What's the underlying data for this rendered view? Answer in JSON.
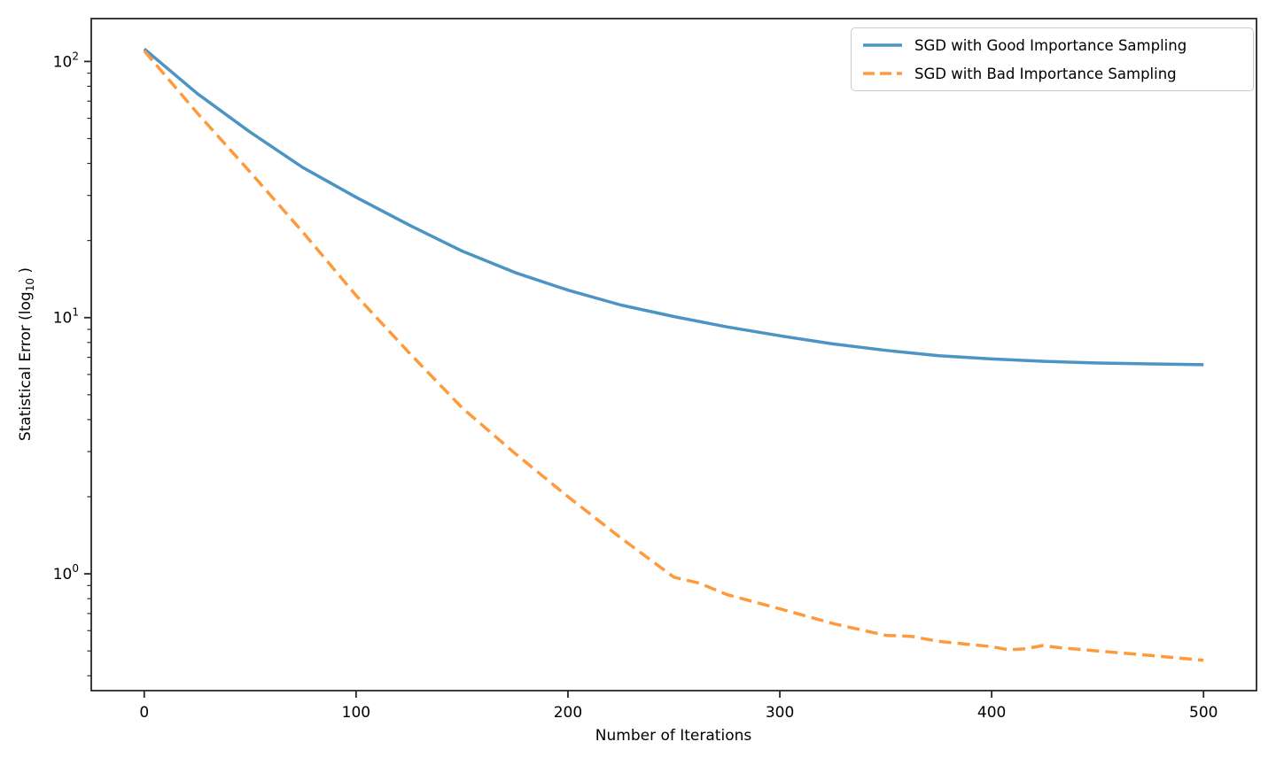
{
  "figure": {
    "background": "#ffffff",
    "axis_color": "#262626",
    "text_color": "#000000"
  },
  "chart_data": {
    "type": "line",
    "title": "",
    "xlabel": "Number of Iterations",
    "ylabel": "Statistical Error (log10 )",
    "ylabel_parts": {
      "prefix": "Statistical Error (log",
      "sub": "10",
      "suffix": " )"
    },
    "xscale": "linear",
    "yscale": "log",
    "xlim": [
      -25,
      525
    ],
    "ylim": [
      0.35,
      147
    ],
    "grid": false,
    "x_ticks": {
      "values": [
        0,
        100,
        200,
        300,
        400,
        500
      ],
      "labels": [
        "0",
        "100",
        "200",
        "300",
        "400",
        "500"
      ]
    },
    "y_ticks": {
      "values": [
        100,
        10,
        1
      ],
      "labels": [
        {
          "base": "10",
          "exp": "2"
        },
        {
          "base": "10",
          "exp": "1"
        },
        {
          "base": "10",
          "exp": "0"
        }
      ]
    },
    "legend": {
      "position": "upper right",
      "border_color": "#cccccc"
    },
    "series": [
      {
        "name": "SGD with Good Importance Sampling",
        "color": "#4b94c3",
        "style": "solid",
        "line_width": 3.5,
        "x": [
          0,
          25,
          50,
          75,
          100,
          125,
          150,
          175,
          200,
          225,
          250,
          275,
          300,
          325,
          350,
          375,
          400,
          425,
          450,
          475,
          500
        ],
        "y": [
          112,
          75,
          53,
          38.5,
          29.5,
          23,
          18.2,
          15,
          12.8,
          11.2,
          10.1,
          9.2,
          8.5,
          7.9,
          7.45,
          7.1,
          6.9,
          6.75,
          6.65,
          6.6,
          6.55
        ]
      },
      {
        "name": "SGD with Bad Importance Sampling",
        "color": "#ff9a3c",
        "style": "dashed",
        "line_width": 3.5,
        "x": [
          0,
          25,
          50,
          75,
          100,
          125,
          150,
          175,
          200,
          225,
          250,
          262,
          275,
          300,
          325,
          350,
          362,
          375,
          400,
          408,
          416,
          424,
          432,
          450,
          475,
          500
        ],
        "y": [
          110,
          63,
          37,
          21.5,
          12.2,
          7.3,
          4.45,
          2.95,
          2.0,
          1.38,
          0.97,
          0.92,
          0.83,
          0.73,
          0.64,
          0.575,
          0.57,
          0.545,
          0.52,
          0.505,
          0.51,
          0.525,
          0.515,
          0.5,
          0.48,
          0.46
        ]
      }
    ]
  }
}
